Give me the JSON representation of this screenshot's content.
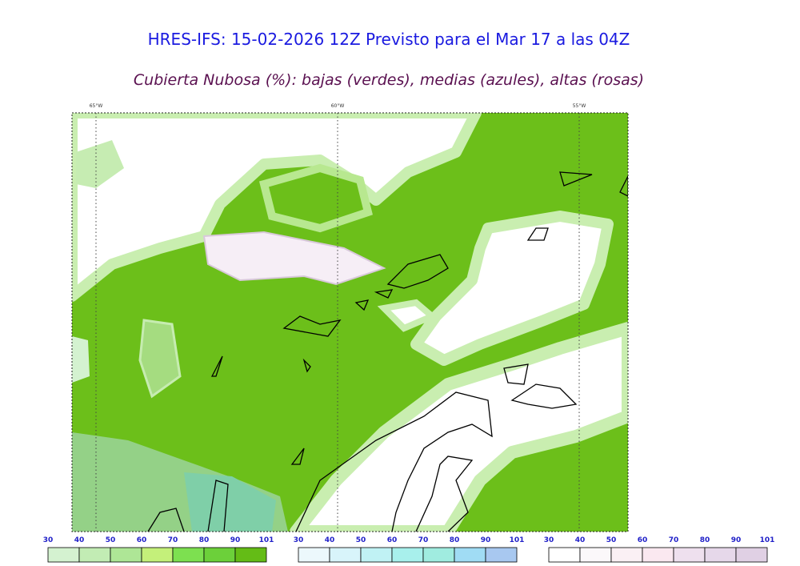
{
  "header": {
    "title": "HRES-IFS: 15-02-2026 12Z Previsto para el Mar 17 a las 04Z",
    "subtitle": "Cubierta Nubosa (%): bajas (verdes), medias (azules), altas (rosas)"
  },
  "map": {
    "longitude_labels": [
      "65°W",
      "60°W",
      "55°W"
    ]
  },
  "legends": [
    {
      "ticks": [
        30,
        40,
        50,
        60,
        70,
        80,
        90,
        101
      ],
      "colors": [
        "#d4f2d0",
        "#c2ecb4",
        "#aee696",
        "#c4f07a",
        "#7de050",
        "#6cd03a",
        "#64bc16"
      ]
    },
    {
      "ticks": [
        30,
        40,
        50,
        60,
        70,
        80,
        90,
        101
      ],
      "colors": [
        "#ecf8fc",
        "#d8f4fa",
        "#c0f2f4",
        "#a8f0ec",
        "#a0ece0",
        "#a0dcf4",
        "#a8c8f0"
      ]
    },
    {
      "ticks": [
        30,
        40,
        50,
        60,
        70,
        80,
        90,
        101
      ],
      "colors": [
        "#ffffff",
        "#fbf8fa",
        "#faf0f4",
        "#fae8f0",
        "#eee0ee",
        "#e6d8ea",
        "#e0d0e4"
      ]
    }
  ]
}
